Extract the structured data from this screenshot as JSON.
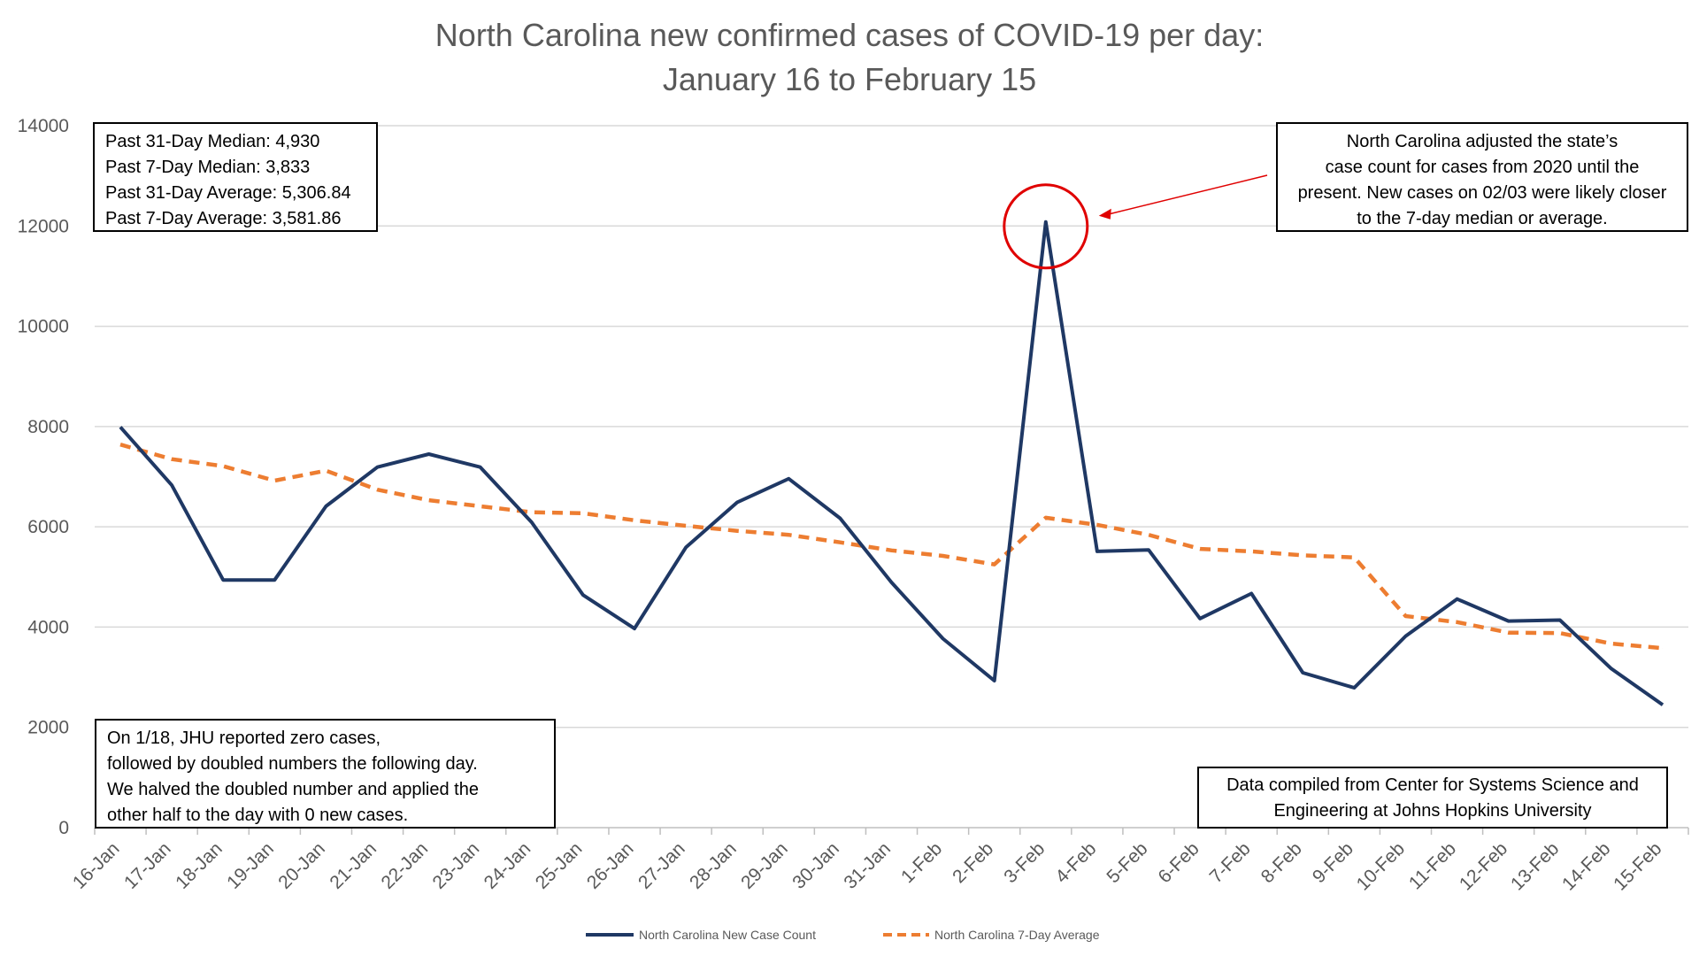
{
  "title_line1": "North Carolina new confirmed cases of COVID-19 per day:",
  "title_line2": "January 16 to February 15",
  "stats_box": [
    "Past 31-Day Median: 4,930",
    "Past 7-Day Median: 3,833",
    "Past 31-Day Average: 5,306.84",
    "Past 7-Day Average: 3,581.86"
  ],
  "adjust_note": [
    "North Carolina adjusted the state’s",
    "case count for cases from 2020 until the",
    "present. New cases on 02/03 were likely closer",
    "to the 7-day median or average."
  ],
  "jhu_note": [
    "On 1/18, JHU reported zero cases,",
    "followed by doubled numbers the following day.",
    "We halved the doubled number and applied the",
    "other half to the day with 0 new cases."
  ],
  "source_note": [
    "Data compiled from Center for Systems Science and",
    "Engineering at Johns Hopkins University"
  ],
  "colors": {
    "case_line": "#1f3864",
    "avg_line": "#ed7d31",
    "highlight": "#e00000",
    "grid": "#d9d9d9",
    "axis_text": "#595959"
  },
  "chart_data": {
    "type": "line",
    "categories": [
      "16-Jan",
      "17-Jan",
      "18-Jan",
      "19-Jan",
      "20-Jan",
      "21-Jan",
      "22-Jan",
      "23-Jan",
      "24-Jan",
      "25-Jan",
      "26-Jan",
      "27-Jan",
      "28-Jan",
      "29-Jan",
      "30-Jan",
      "31-Jan",
      "1-Feb",
      "2-Feb",
      "3-Feb",
      "4-Feb",
      "5-Feb",
      "6-Feb",
      "7-Feb",
      "8-Feb",
      "9-Feb",
      "10-Feb",
      "11-Feb",
      "12-Feb",
      "13-Feb",
      "14-Feb",
      "15-Feb"
    ],
    "series": [
      {
        "name": "North Carolina New Case Count",
        "style": "solid",
        "values": [
          7990,
          6830,
          4940,
          4940,
          6410,
          7190,
          7450,
          7190,
          6090,
          4640,
          3970,
          5590,
          6490,
          6960,
          6170,
          4890,
          3770,
          2930,
          12080,
          5510,
          5540,
          4170,
          4670,
          3090,
          2790,
          3820,
          4560,
          4120,
          4140,
          3170,
          2450
        ]
      },
      {
        "name": "North Carolina 7-Day Average",
        "style": "dashed",
        "values": [
          7640,
          7350,
          7210,
          6920,
          7120,
          6740,
          6530,
          6410,
          6290,
          6270,
          6130,
          6020,
          5920,
          5840,
          5690,
          5530,
          5420,
          5250,
          6180,
          6040,
          5840,
          5560,
          5510,
          5430,
          5390,
          4220,
          4100,
          3890,
          3880,
          3670,
          3580
        ]
      }
    ],
    "y_ticks": [
      0,
      2000,
      4000,
      6000,
      8000,
      10000,
      12000,
      14000
    ],
    "ylim": [
      0,
      14000
    ],
    "grid": true,
    "legend_position": "bottom-center",
    "highlight_category": "3-Feb"
  }
}
